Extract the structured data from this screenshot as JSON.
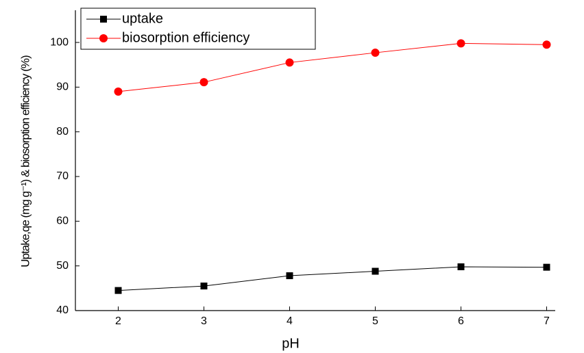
{
  "chart_data": {
    "type": "line",
    "x_label": "pH",
    "y_label": "Uptake,qe (mg g⁻¹) & biosorption efficiency (%)",
    "x": [
      2,
      3,
      4,
      5,
      6,
      7
    ],
    "series": [
      {
        "name": "uptake",
        "color": "#000000",
        "marker": "square",
        "values": [
          44.5,
          45.5,
          47.8,
          48.8,
          49.8,
          49.7
        ]
      },
      {
        "name": "biosorption efficiency",
        "color": "#ff0000",
        "marker": "circle",
        "values": [
          89,
          91.1,
          95.5,
          97.7,
          99.8,
          99.5
        ]
      }
    ],
    "xlim": [
      1.5,
      7.1
    ],
    "xticks": [
      2,
      3,
      4,
      5,
      6,
      7
    ],
    "ylim": [
      40,
      107.2
    ],
    "yticks": [
      40,
      50,
      60,
      70,
      80,
      90,
      100
    ],
    "legend": "top-left"
  }
}
